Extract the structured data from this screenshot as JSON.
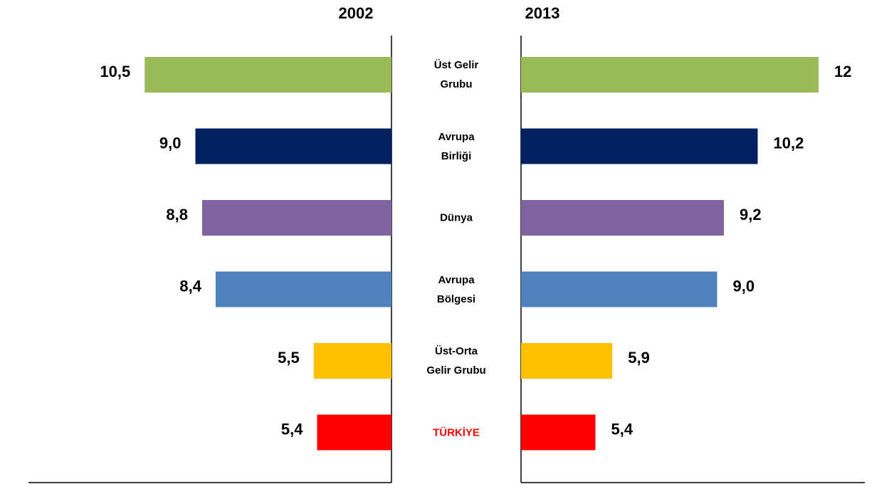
{
  "chart_data": {
    "type": "butterfly-bar",
    "categories": [
      "Üst Gelir Grubu",
      "Avrupa Birliği",
      "Dünya",
      "Avrupa Bölgesi",
      "Üst-Orta Gelir Grubu",
      "TÜRKİYE"
    ],
    "colors": [
      "#9bbb59",
      "#002060",
      "#8064a2",
      "#4f81bd",
      "#ffc000",
      "#ff0000"
    ],
    "series": [
      {
        "name": "2002",
        "values": [
          10.5,
          9.0,
          8.8,
          8.4,
          5.5,
          5.4
        ],
        "value_labels": [
          "10,5",
          "9,0",
          "8,8",
          "8,4",
          "5,5",
          "5,4"
        ]
      },
      {
        "name": "2013",
        "values": [
          12,
          10.2,
          9.2,
          9.0,
          5.9,
          5.4
        ],
        "value_labels": [
          "12",
          "10,2",
          "9,2",
          "9,0",
          "5,9",
          "5,4"
        ]
      }
    ],
    "xlim": [
      3.2,
      12.4
    ]
  }
}
